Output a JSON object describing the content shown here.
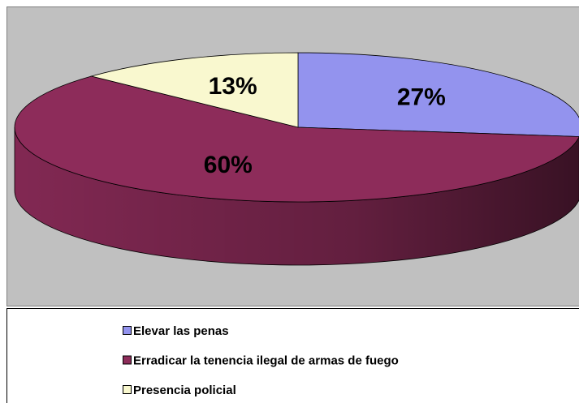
{
  "chart_data": {
    "type": "pie",
    "categories": [
      "Elevar las penas",
      "Erradicar la tenencia ilegal de armas de fuego",
      "Presencia policial"
    ],
    "values": [
      27,
      60,
      13
    ],
    "value_labels": [
      "27%",
      "60%",
      "13%"
    ],
    "colors": [
      "#9393ee",
      "#8d2c5a",
      "#f9f8cf"
    ],
    "legend": "bottom"
  }
}
